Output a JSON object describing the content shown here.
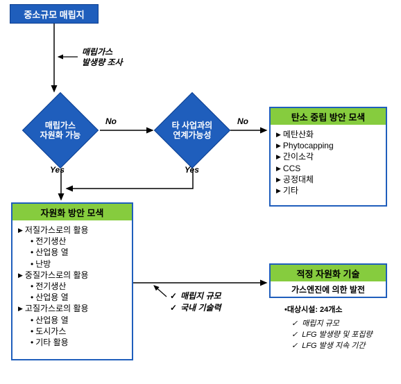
{
  "colors": {
    "blue": "#1f5ebc",
    "blue_border": "#0a3d8f",
    "green": "#86cc3e",
    "bg": "#ffffff",
    "text": "#000000"
  },
  "start": {
    "label": "중소규모 매립지"
  },
  "sidenote1": {
    "line1": "매립가스",
    "line2": "발생량 조사"
  },
  "decision1": {
    "line1": "매립가스",
    "line2": "자원화 가능"
  },
  "decision2": {
    "line1": "타 사업과의",
    "line2": "연계가능성"
  },
  "yes": "Yes",
  "no": "No",
  "groupA": {
    "title": "자원화 방안 모색",
    "items": [
      {
        "t": "저질가스로의 활용",
        "lvl": 1
      },
      {
        "t": "전기생산",
        "lvl": 2
      },
      {
        "t": "산업용 열",
        "lvl": 2
      },
      {
        "t": "난방",
        "lvl": 2
      },
      {
        "t": "중질가스로의 활용",
        "lvl": 1
      },
      {
        "t": "전기생산",
        "lvl": 2
      },
      {
        "t": "산업용 열",
        "lvl": 2
      },
      {
        "t": "고질가스로의 활용",
        "lvl": 1
      },
      {
        "t": "산업용 열",
        "lvl": 2
      },
      {
        "t": "도시가스",
        "lvl": 2
      },
      {
        "t": "기타 활용",
        "lvl": 2
      }
    ]
  },
  "groupB": {
    "title": "탄소 중립 방안 모색",
    "items": [
      "메탄산화",
      "Phytocapping",
      "간이소각",
      "CCS",
      "공정대체",
      "기타"
    ]
  },
  "midchecks": {
    "a": "매립지 규모",
    "b": "국내 기술력"
  },
  "groupC": {
    "title": "적정 자원화 기술",
    "body": "가스엔진에 의한 발전"
  },
  "rightnote": {
    "hdr": "•대상시설: 24개소",
    "items": [
      "매립지 규모",
      "LFG 발생량 및 포집량",
      "LFG 발생 지속 기간"
    ]
  }
}
